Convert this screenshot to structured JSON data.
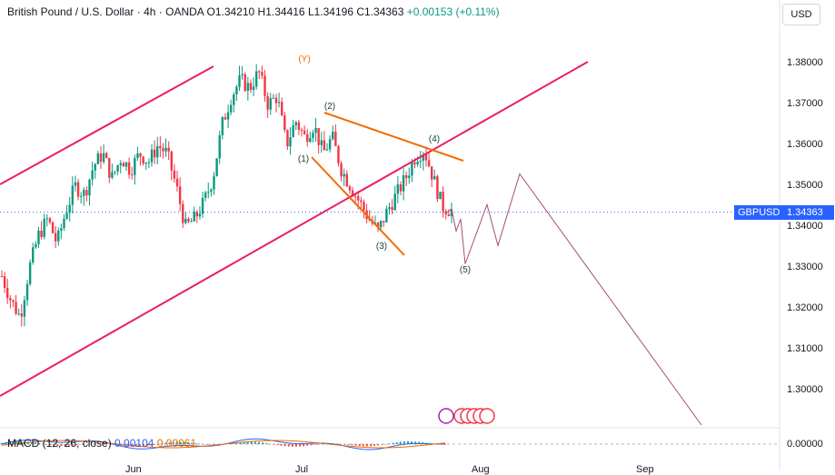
{
  "header": {
    "symbol_name": "British Pound / U.S. Dollar",
    "interval": "4h",
    "source": "OANDA",
    "open": "O1.34210",
    "high": "H1.34416",
    "low": "L1.34196",
    "close": "C1.34363",
    "change": "+0.00153 (+0.11%)",
    "change_color": "#089981"
  },
  "currency_button": "USD",
  "price_badge": {
    "ticker": "GBPUSD",
    "price": "1.34363",
    "color": "#2962ff"
  },
  "macd_label": {
    "name": "MACD (12, 26, close)",
    "v1": "0.00104",
    "v2": "0.00061"
  },
  "macd_axis_label": "0.00000",
  "x_axis_labels": [
    "Jun",
    "Jul",
    "Aug",
    "Sep"
  ],
  "wave_labels": [
    "(Y)",
    "(1)",
    "(2)",
    "(3)",
    "(4)",
    "(5)"
  ],
  "colors": {
    "up": "#089981",
    "down": "#f23645",
    "channel": "#e91e63",
    "triangle": "#ef6c00",
    "projection": "#a0526b",
    "label_y": "#ef6c00",
    "label_waves": "#1b4332"
  },
  "chart_data": {
    "type": "candlestick",
    "y_axis_ticks": [
      "1.38000",
      "1.37000",
      "1.36000",
      "1.35000",
      "1.34000",
      "1.33000",
      "1.32000",
      "1.31000",
      "1.30000"
    ],
    "ylim": [
      1.293,
      1.395
    ],
    "current_price": 1.34363,
    "ohlc_close_path": [
      1.328,
      1.322,
      1.318,
      1.33,
      1.338,
      1.342,
      1.336,
      1.344,
      1.35,
      1.348,
      1.355,
      1.358,
      1.352,
      1.357,
      1.354,
      1.358,
      1.356,
      1.36,
      1.358,
      1.35,
      1.34,
      1.342,
      1.346,
      1.352,
      1.365,
      1.372,
      1.376,
      1.374,
      1.378,
      1.37,
      1.372,
      1.36,
      1.366,
      1.362,
      1.365,
      1.358,
      1.362,
      1.354,
      1.35,
      1.346,
      1.342,
      1.339,
      1.344,
      1.348,
      1.352,
      1.357,
      1.359,
      1.352,
      1.345,
      1.344
    ],
    "elliott_projection": [
      {
        "label": "(5)",
        "price": 1.331
      },
      {
        "price": 1.345
      },
      {
        "price": 1.335
      },
      {
        "price": 1.353
      },
      {
        "price": 1.292
      }
    ]
  }
}
